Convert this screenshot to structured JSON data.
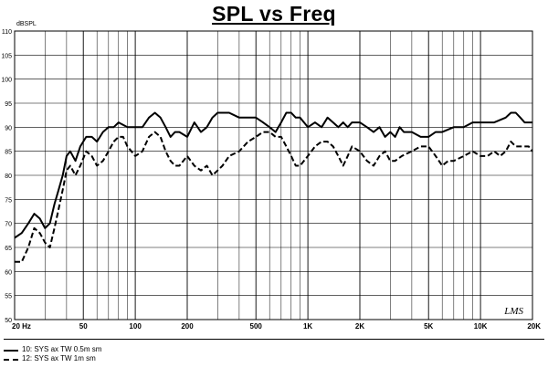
{
  "title": "SPL vs Freq",
  "chart_data": {
    "type": "line",
    "title": "SPL vs Freq",
    "ylabel": "dBSPL",
    "xlabel": "",
    "xscale": "log",
    "xlim": [
      20,
      20000
    ],
    "ylim": [
      50,
      110
    ],
    "grid": true,
    "y_ticks": [
      50,
      55,
      60,
      65,
      70,
      75,
      80,
      85,
      90,
      95,
      100,
      105,
      110
    ],
    "x_tick_labels": [
      {
        "value": 20,
        "label": "20  Hz"
      },
      {
        "value": 50,
        "label": "50"
      },
      {
        "value": 100,
        "label": "100"
      },
      {
        "value": 200,
        "label": "200"
      },
      {
        "value": 500,
        "label": "500"
      },
      {
        "value": 1000,
        "label": "1K"
      },
      {
        "value": 2000,
        "label": "2K"
      },
      {
        "value": 5000,
        "label": "5K"
      },
      {
        "value": 10000,
        "label": "10K"
      },
      {
        "value": 20000,
        "label": "20K"
      }
    ],
    "watermark": "LMS",
    "series": [
      {
        "name": "10: SYS ax TW 0.5m sm",
        "style": "solid",
        "points": [
          [
            20,
            67
          ],
          [
            22,
            68
          ],
          [
            24,
            70
          ],
          [
            26,
            72
          ],
          [
            28,
            71
          ],
          [
            30,
            69
          ],
          [
            32,
            70
          ],
          [
            34,
            74
          ],
          [
            36,
            77
          ],
          [
            38,
            80
          ],
          [
            40,
            84
          ],
          [
            42,
            85
          ],
          [
            45,
            83
          ],
          [
            48,
            86
          ],
          [
            52,
            88
          ],
          [
            56,
            88
          ],
          [
            60,
            87
          ],
          [
            65,
            89
          ],
          [
            70,
            90
          ],
          [
            75,
            90
          ],
          [
            80,
            91
          ],
          [
            90,
            90
          ],
          [
            100,
            90
          ],
          [
            110,
            90
          ],
          [
            120,
            92
          ],
          [
            130,
            93
          ],
          [
            140,
            92
          ],
          [
            150,
            90
          ],
          [
            160,
            88
          ],
          [
            170,
            89
          ],
          [
            180,
            89
          ],
          [
            200,
            88
          ],
          [
            220,
            91
          ],
          [
            240,
            89
          ],
          [
            260,
            90
          ],
          [
            280,
            92
          ],
          [
            300,
            93
          ],
          [
            350,
            93
          ],
          [
            400,
            92
          ],
          [
            450,
            92
          ],
          [
            500,
            92
          ],
          [
            550,
            91
          ],
          [
            600,
            90
          ],
          [
            650,
            89
          ],
          [
            700,
            91
          ],
          [
            750,
            93
          ],
          [
            800,
            93
          ],
          [
            850,
            92
          ],
          [
            900,
            92
          ],
          [
            950,
            91
          ],
          [
            1000,
            90
          ],
          [
            1100,
            91
          ],
          [
            1200,
            90
          ],
          [
            1300,
            92
          ],
          [
            1400,
            91
          ],
          [
            1500,
            90
          ],
          [
            1600,
            91
          ],
          [
            1700,
            90
          ],
          [
            1800,
            91
          ],
          [
            2000,
            91
          ],
          [
            2200,
            90
          ],
          [
            2400,
            89
          ],
          [
            2600,
            90
          ],
          [
            2800,
            88
          ],
          [
            3000,
            89
          ],
          [
            3200,
            88
          ],
          [
            3400,
            90
          ],
          [
            3600,
            89
          ],
          [
            4000,
            89
          ],
          [
            4500,
            88
          ],
          [
            5000,
            88
          ],
          [
            5500,
            89
          ],
          [
            6000,
            89
          ],
          [
            7000,
            90
          ],
          [
            8000,
            90
          ],
          [
            9000,
            91
          ],
          [
            10000,
            91
          ],
          [
            12000,
            91
          ],
          [
            14000,
            92
          ],
          [
            15000,
            93
          ],
          [
            16000,
            93
          ],
          [
            17000,
            92
          ],
          [
            18000,
            91
          ],
          [
            20000,
            91
          ]
        ]
      },
      {
        "name": "12: SYS ax TW 1m sm",
        "style": "dashed",
        "points": [
          [
            20,
            62
          ],
          [
            22,
            62
          ],
          [
            24,
            65
          ],
          [
            26,
            69
          ],
          [
            28,
            68
          ],
          [
            30,
            66
          ],
          [
            32,
            65
          ],
          [
            34,
            69
          ],
          [
            36,
            73
          ],
          [
            38,
            77
          ],
          [
            40,
            81
          ],
          [
            42,
            82
          ],
          [
            45,
            80
          ],
          [
            48,
            82
          ],
          [
            52,
            85
          ],
          [
            56,
            84
          ],
          [
            60,
            82
          ],
          [
            65,
            83
          ],
          [
            70,
            85
          ],
          [
            75,
            87
          ],
          [
            80,
            88
          ],
          [
            85,
            88
          ],
          [
            90,
            86
          ],
          [
            95,
            85
          ],
          [
            100,
            84
          ],
          [
            110,
            85
          ],
          [
            120,
            88
          ],
          [
            130,
            89
          ],
          [
            140,
            88
          ],
          [
            150,
            85
          ],
          [
            160,
            83
          ],
          [
            170,
            82
          ],
          [
            180,
            82
          ],
          [
            200,
            84
          ],
          [
            220,
            82
          ],
          [
            240,
            81
          ],
          [
            260,
            82
          ],
          [
            280,
            80
          ],
          [
            300,
            81
          ],
          [
            320,
            82
          ],
          [
            350,
            84
          ],
          [
            400,
            85
          ],
          [
            450,
            87
          ],
          [
            500,
            88
          ],
          [
            550,
            89
          ],
          [
            600,
            89
          ],
          [
            650,
            88
          ],
          [
            700,
            88
          ],
          [
            750,
            86
          ],
          [
            800,
            84
          ],
          [
            850,
            82
          ],
          [
            900,
            82
          ],
          [
            1000,
            84
          ],
          [
            1100,
            86
          ],
          [
            1200,
            87
          ],
          [
            1300,
            87
          ],
          [
            1400,
            86
          ],
          [
            1500,
            84
          ],
          [
            1600,
            82
          ],
          [
            1700,
            84
          ],
          [
            1800,
            86
          ],
          [
            2000,
            85
          ],
          [
            2200,
            83
          ],
          [
            2400,
            82
          ],
          [
            2600,
            84
          ],
          [
            2800,
            85
          ],
          [
            3000,
            83
          ],
          [
            3200,
            83
          ],
          [
            3500,
            84
          ],
          [
            4000,
            85
          ],
          [
            4500,
            86
          ],
          [
            5000,
            86
          ],
          [
            5500,
            84
          ],
          [
            6000,
            82
          ],
          [
            6500,
            83
          ],
          [
            7000,
            83
          ],
          [
            8000,
            84
          ],
          [
            9000,
            85
          ],
          [
            10000,
            84
          ],
          [
            11000,
            84
          ],
          [
            12000,
            85
          ],
          [
            13000,
            84
          ],
          [
            14000,
            85
          ],
          [
            15000,
            87
          ],
          [
            16000,
            86
          ],
          [
            17000,
            86
          ],
          [
            18000,
            86
          ],
          [
            19000,
            86
          ],
          [
            20000,
            85
          ]
        ]
      }
    ]
  }
}
